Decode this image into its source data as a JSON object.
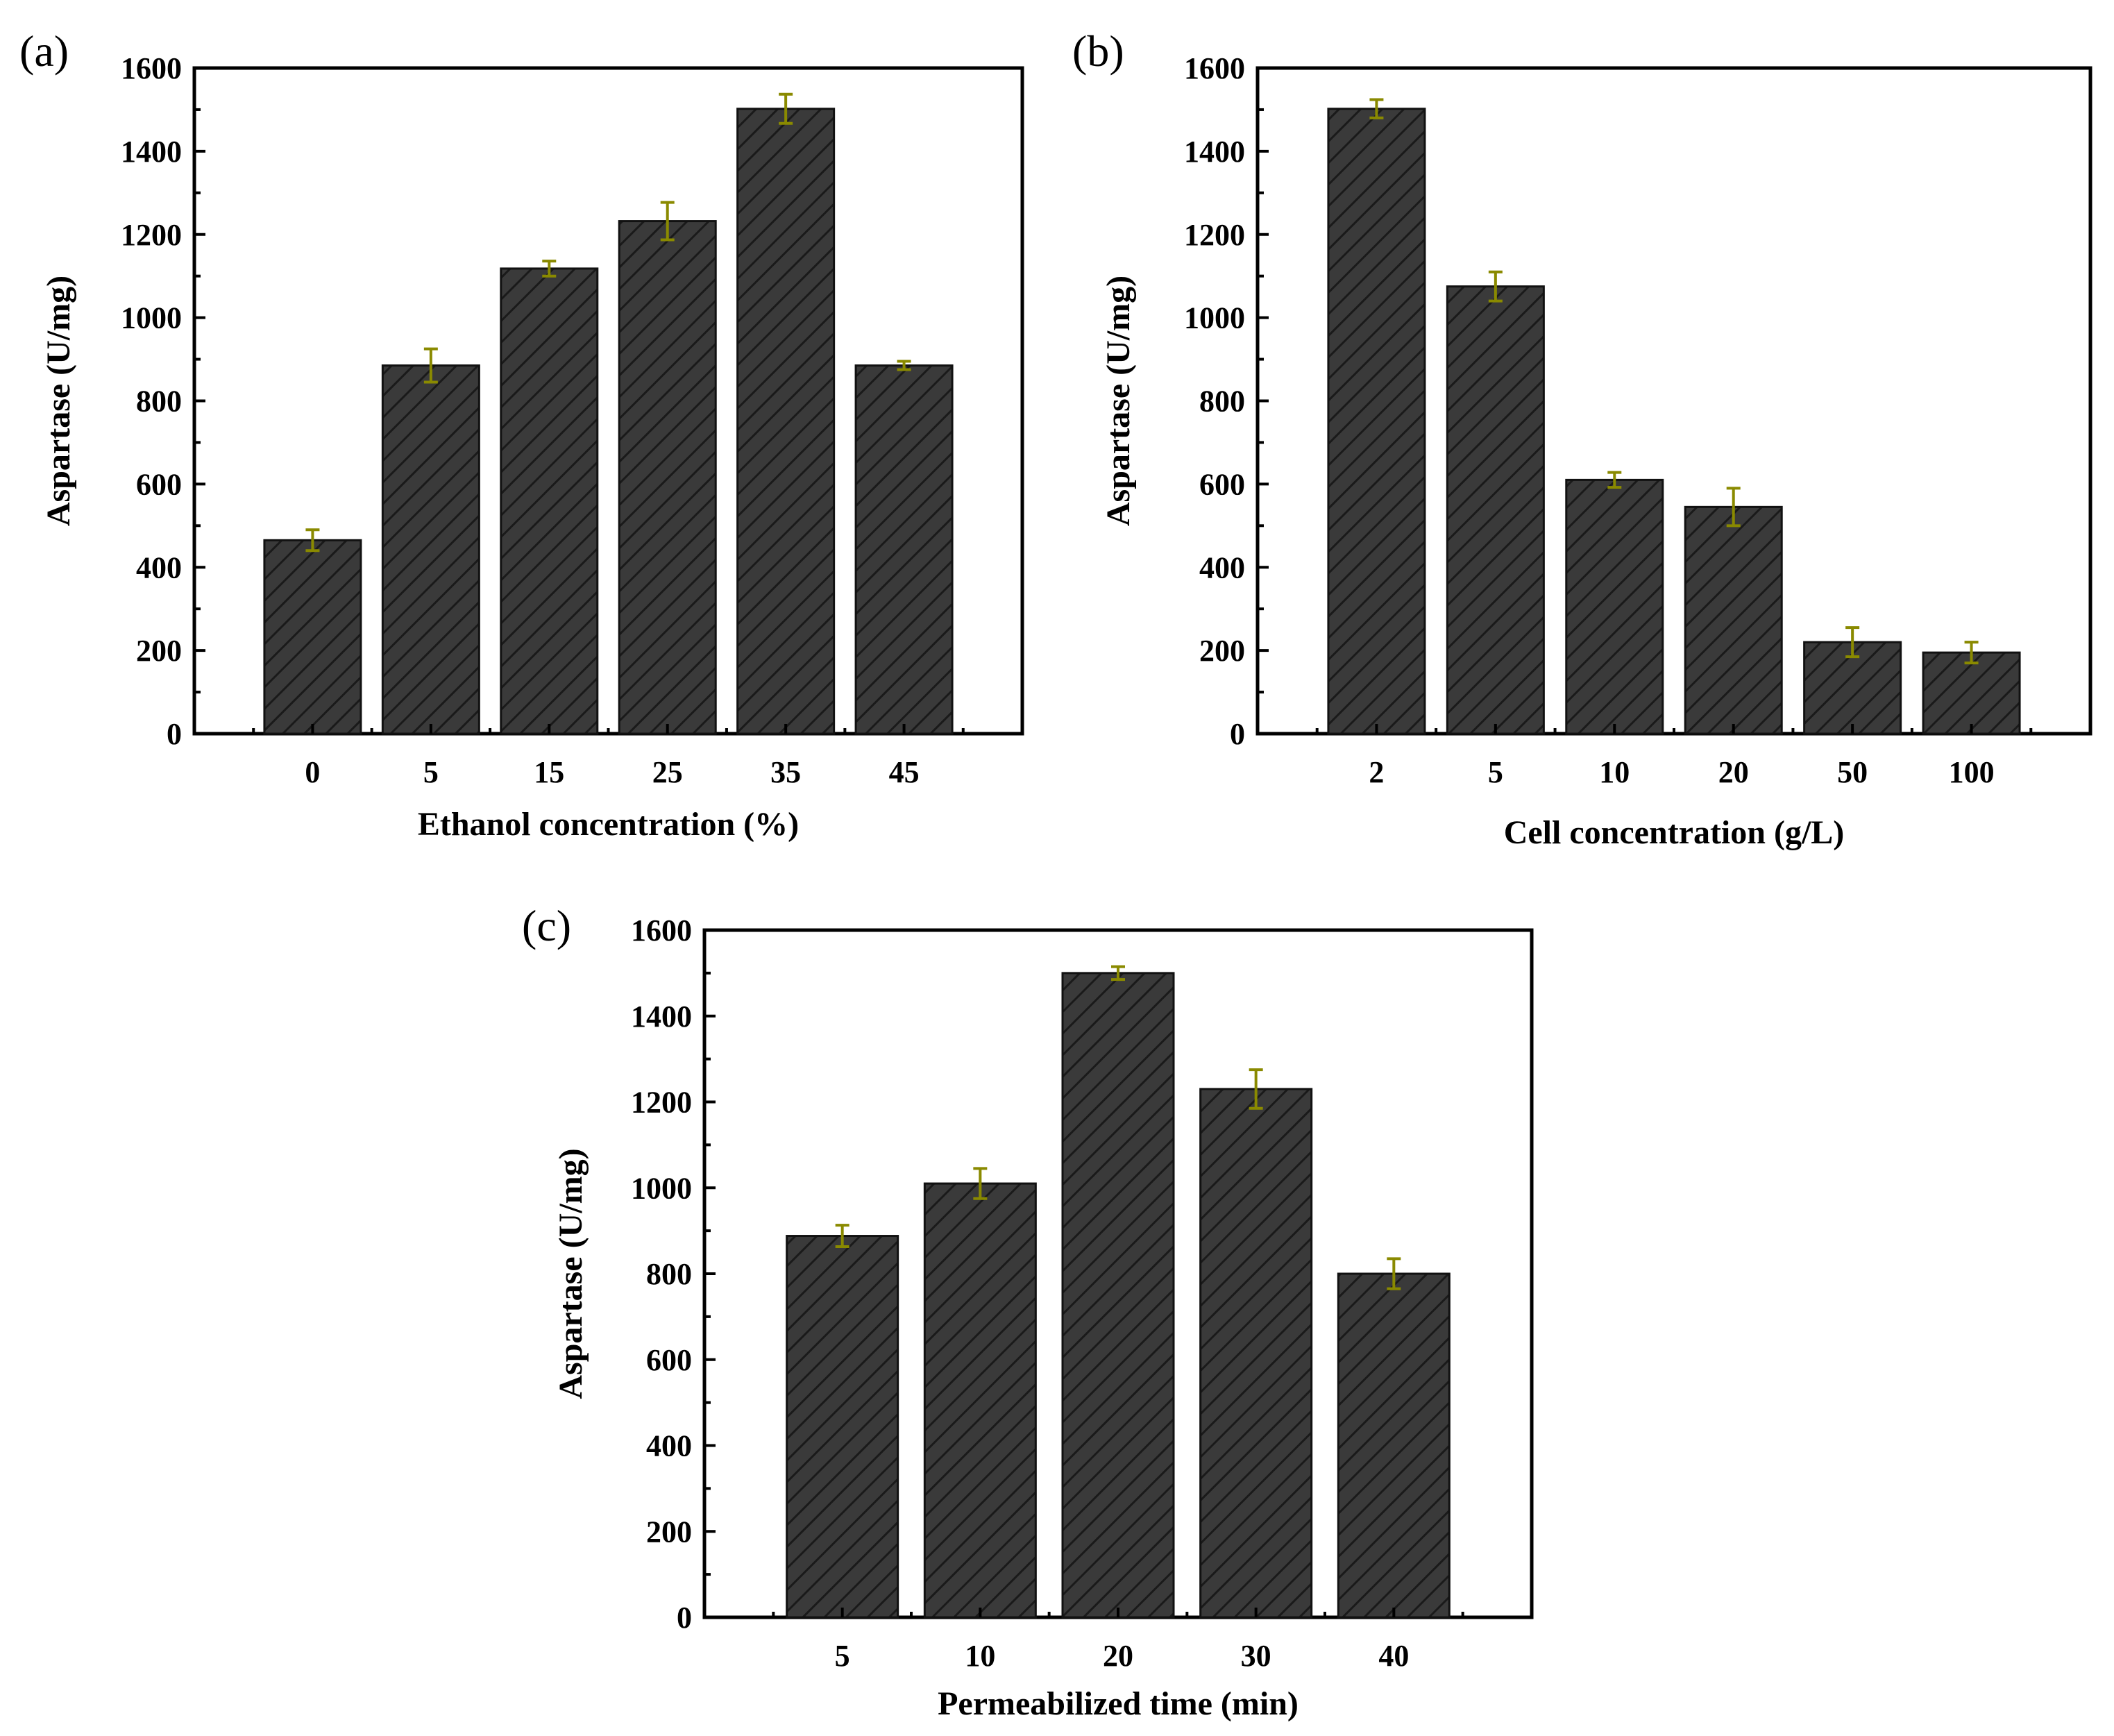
{
  "figure": {
    "panels": [
      {
        "id": "a",
        "label": "(a)",
        "chart_key": 0
      },
      {
        "id": "b",
        "label": "(b)",
        "chart_key": 1
      },
      {
        "id": "c",
        "label": "(c)",
        "chart_key": 2
      }
    ]
  },
  "colors": {
    "bar_fill": "#3a3a3a",
    "hatch_line": "#1a1a1a",
    "error_bar": "#8a8a00",
    "axis": "#000000"
  },
  "chart_data": [
    {
      "type": "bar",
      "title": "",
      "xlabel": "Ethanol concentration (%)",
      "ylabel": "Aspartase (U/mg)",
      "categories": [
        "0",
        "5",
        "15",
        "25",
        "35",
        "45"
      ],
      "values": [
        465,
        885,
        1118,
        1232,
        1502,
        885
      ],
      "errors": [
        25,
        40,
        18,
        45,
        35,
        10
      ],
      "ylim": [
        0,
        1600
      ],
      "yticks": [
        0,
        200,
        400,
        600,
        800,
        1000,
        1200,
        1400,
        1600
      ],
      "grid": false,
      "legend": "none"
    },
    {
      "type": "bar",
      "title": "",
      "xlabel": "Cell concentration (g/L)",
      "ylabel": "Aspartase (U/mg)",
      "categories": [
        "2",
        "5",
        "10",
        "20",
        "50",
        "100"
      ],
      "values": [
        1502,
        1075,
        610,
        545,
        220,
        195
      ],
      "errors": [
        22,
        35,
        18,
        45,
        35,
        25
      ],
      "ylim": [
        0,
        1600
      ],
      "yticks": [
        0,
        200,
        400,
        600,
        800,
        1000,
        1200,
        1400,
        1600
      ],
      "grid": false,
      "legend": "none"
    },
    {
      "type": "bar",
      "title": "",
      "xlabel": "Permeabilized time (min)",
      "ylabel": "Aspartase (U/mg)",
      "categories": [
        "5",
        "10",
        "20",
        "30",
        "40"
      ],
      "values": [
        888,
        1010,
        1500,
        1230,
        800
      ],
      "errors": [
        25,
        35,
        15,
        45,
        35
      ],
      "ylim": [
        0,
        1600
      ],
      "yticks": [
        0,
        200,
        400,
        600,
        800,
        1000,
        1200,
        1400,
        1600
      ],
      "grid": false,
      "legend": "none"
    }
  ]
}
